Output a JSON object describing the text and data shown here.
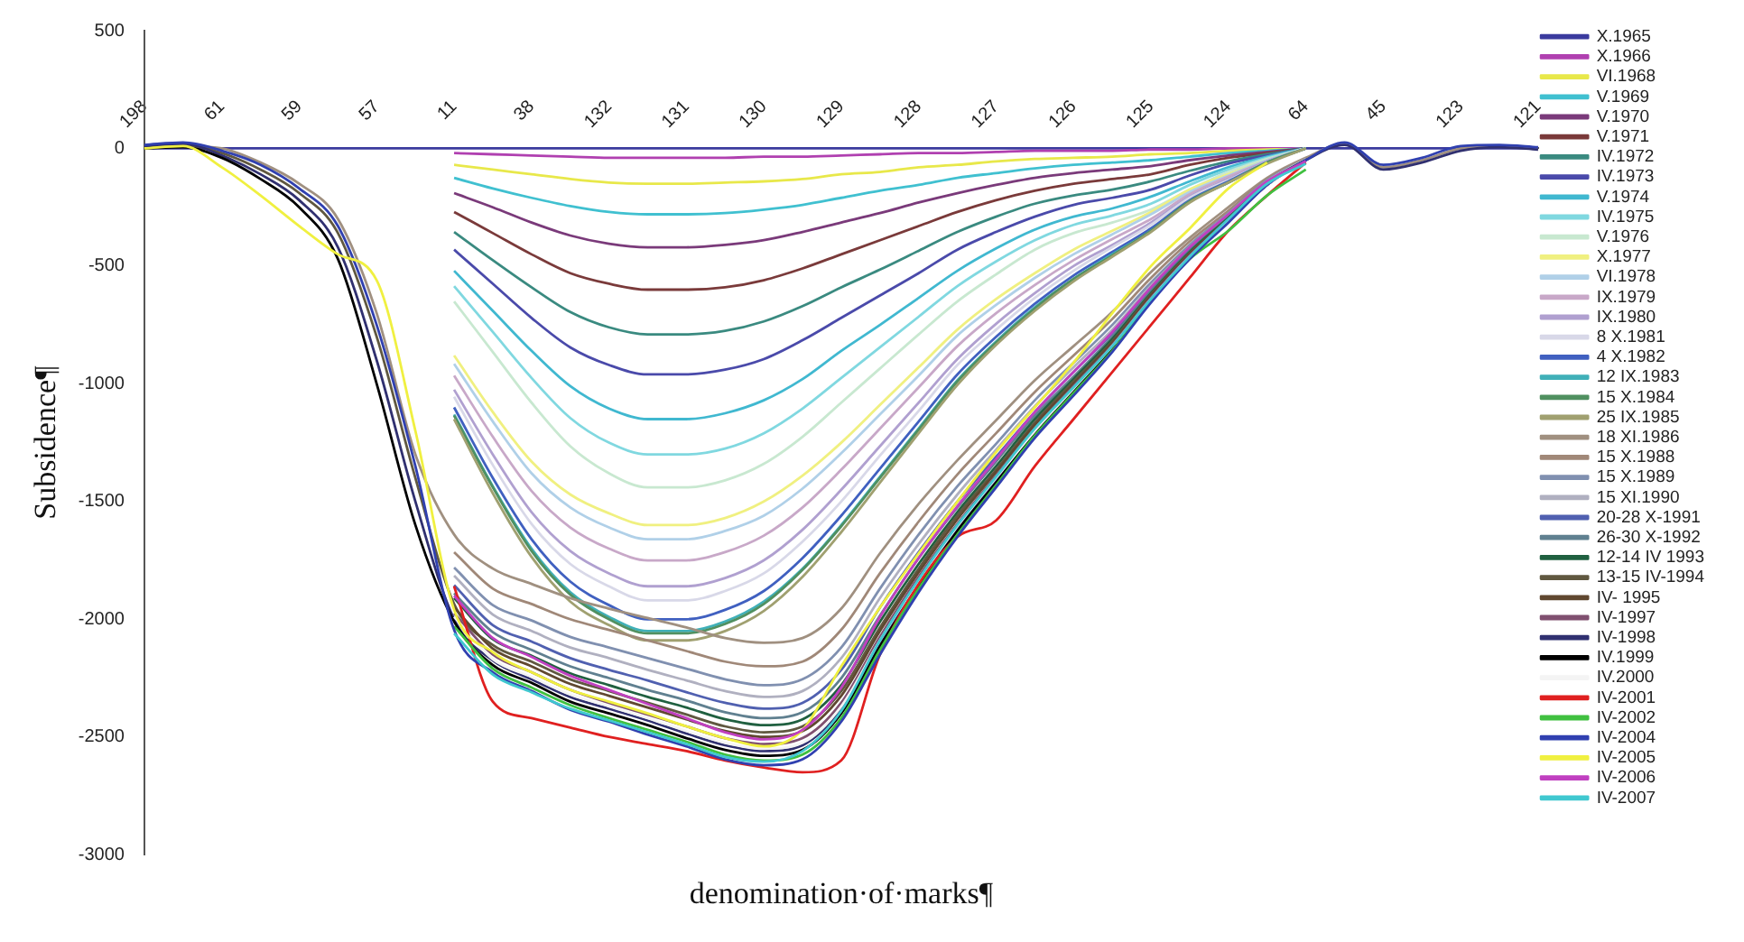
{
  "chart_data": {
    "type": "line",
    "xlabel": "denomination·of·marks¶",
    "ylabel": "Subsidence¶",
    "categories": [
      "198",
      null,
      "61",
      null,
      "59",
      null,
      "57",
      null,
      "11",
      null,
      "38",
      null,
      "132",
      null,
      "131",
      null,
      "130",
      null,
      "129",
      null,
      "128",
      null,
      "127",
      null,
      "126",
      null,
      "125",
      null,
      "124",
      null,
      "64",
      null,
      "45",
      null,
      "123",
      null,
      "121"
    ],
    "ylim": [
      -3000,
      500
    ],
    "yticks": [
      -3000,
      -2500,
      -2000,
      -1500,
      -1000,
      -500,
      0,
      500
    ],
    "grid": false,
    "legend": "right",
    "marker": "none",
    "line_style": "solid",
    "series": [
      {
        "name": "X.1965",
        "color": "#3b3b9e",
        "values": [
          0,
          0,
          0,
          0,
          0,
          0,
          0,
          0,
          0,
          0,
          0,
          0,
          0,
          0,
          0,
          0,
          0,
          0,
          0,
          0,
          0,
          0,
          0,
          0,
          0,
          0,
          0,
          0,
          0,
          0,
          0,
          0,
          0,
          0,
          0,
          0,
          0
        ]
      },
      {
        "name": "X.1966",
        "color": "#b040b0",
        "values": [
          null,
          null,
          null,
          null,
          null,
          null,
          null,
          null,
          -20,
          -25,
          -30,
          -35,
          -40,
          -40,
          -40,
          -40,
          -35,
          -35,
          -30,
          -25,
          -20,
          -20,
          -15,
          -10,
          -10,
          -10,
          -5,
          -5,
          0,
          0,
          0,
          null,
          null,
          null,
          null,
          null,
          null
        ]
      },
      {
        "name": "VI.1968",
        "color": "#e8e84a",
        "values": [
          null,
          null,
          null,
          null,
          null,
          null,
          null,
          null,
          -70,
          -90,
          -110,
          -130,
          -145,
          -150,
          -150,
          -145,
          -140,
          -130,
          -110,
          -100,
          -80,
          -70,
          -55,
          -45,
          -40,
          -35,
          -25,
          -20,
          -10,
          -5,
          0,
          null,
          null,
          null,
          null,
          null,
          null
        ]
      },
      {
        "name": "V.1969",
        "color": "#40c0d0",
        "values": [
          null,
          null,
          null,
          null,
          null,
          null,
          null,
          null,
          -125,
          -170,
          -210,
          -245,
          -270,
          -280,
          -280,
          -275,
          -260,
          -240,
          -210,
          -180,
          -155,
          -125,
          -105,
          -85,
          -70,
          -60,
          -50,
          -35,
          -20,
          -10,
          0,
          null,
          null,
          null,
          null,
          null,
          null
        ]
      },
      {
        "name": "V.1970",
        "color": "#7a3a7a",
        "values": [
          null,
          null,
          null,
          null,
          null,
          null,
          null,
          null,
          -190,
          -250,
          -315,
          -370,
          -405,
          -420,
          -420,
          -410,
          -390,
          -355,
          -315,
          -275,
          -230,
          -190,
          -155,
          -125,
          -105,
          -90,
          -75,
          -50,
          -30,
          -15,
          0,
          null,
          null,
          null,
          null,
          null,
          null
        ]
      },
      {
        "name": "V.1971",
        "color": "#7a3a3a",
        "values": [
          null,
          null,
          null,
          null,
          null,
          null,
          null,
          null,
          -270,
          -360,
          -450,
          -530,
          -575,
          -600,
          -600,
          -590,
          -560,
          -510,
          -450,
          -390,
          -330,
          -270,
          -220,
          -180,
          -150,
          -130,
          -110,
          -70,
          -40,
          -20,
          0,
          null,
          null,
          null,
          null,
          null,
          null
        ]
      },
      {
        "name": "IV.1972",
        "color": "#3a8a80",
        "values": [
          null,
          null,
          null,
          null,
          null,
          null,
          null,
          null,
          -355,
          -475,
          -590,
          -695,
          -760,
          -790,
          -790,
          -775,
          -735,
          -670,
          -590,
          -515,
          -435,
          -355,
          -290,
          -235,
          -200,
          -175,
          -140,
          -95,
          -55,
          -25,
          0,
          null,
          null,
          null,
          null,
          null,
          null
        ]
      },
      {
        "name": "IV.1973",
        "color": "#4a4aaa",
        "values": [
          null,
          null,
          null,
          null,
          null,
          null,
          null,
          null,
          -430,
          -575,
          -720,
          -845,
          -920,
          -960,
          -960,
          -940,
          -895,
          -815,
          -720,
          -625,
          -530,
          -430,
          -355,
          -290,
          -240,
          -210,
          -175,
          -115,
          -65,
          -30,
          0,
          null,
          null,
          null,
          null,
          null,
          null
        ]
      },
      {
        "name": "V.1974",
        "color": "#40b8d0",
        "values": [
          null,
          null,
          null,
          null,
          null,
          null,
          null,
          null,
          -520,
          -690,
          -860,
          -1010,
          -1105,
          -1150,
          -1150,
          -1125,
          -1070,
          -980,
          -860,
          -750,
          -635,
          -520,
          -425,
          -345,
          -290,
          -255,
          -205,
          -140,
          -80,
          -35,
          0,
          null,
          null,
          null,
          null,
          null,
          null
        ]
      },
      {
        "name": "IV.1975",
        "color": "#80d8e0",
        "values": [
          null,
          null,
          null,
          null,
          null,
          null,
          null,
          null,
          -585,
          -780,
          -975,
          -1145,
          -1250,
          -1300,
          -1300,
          -1275,
          -1210,
          -1105,
          -975,
          -845,
          -715,
          -585,
          -480,
          -390,
          -325,
          -285,
          -235,
          -155,
          -90,
          -40,
          0,
          null,
          null,
          null,
          null,
          null,
          null
        ]
      },
      {
        "name": "V.1976",
        "color": "#c8e8d0",
        "values": [
          null,
          null,
          null,
          null,
          null,
          null,
          null,
          null,
          -650,
          -865,
          -1080,
          -1265,
          -1380,
          -1440,
          -1440,
          -1410,
          -1340,
          -1225,
          -1080,
          -935,
          -790,
          -650,
          -535,
          -430,
          -360,
          -315,
          -260,
          -175,
          -100,
          -45,
          0,
          null,
          null,
          null,
          null,
          null,
          null
        ]
      },
      {
        "name": "X.1977",
        "color": "#f0f080",
        "values": [
          null,
          null,
          null,
          null,
          null,
          null,
          null,
          null,
          -880,
          -1120,
          -1330,
          -1470,
          -1550,
          -1600,
          -1600,
          -1570,
          -1500,
          -1390,
          -1250,
          -1090,
          -930,
          -770,
          -640,
          -530,
          -430,
          -350,
          -270,
          -175,
          -110,
          -50,
          0,
          null,
          null,
          null,
          null,
          null,
          null
        ]
      },
      {
        "name": "VI.1978",
        "color": "#b0d0e8",
        "values": [
          null,
          null,
          null,
          null,
          null,
          null,
          null,
          null,
          -915,
          -1160,
          -1380,
          -1525,
          -1610,
          -1660,
          -1660,
          -1625,
          -1560,
          -1445,
          -1295,
          -1130,
          -965,
          -795,
          -665,
          -550,
          -450,
          -365,
          -280,
          -185,
          -115,
          -50,
          0,
          null,
          null,
          null,
          null,
          null,
          null
        ]
      },
      {
        "name": "IX.1979",
        "color": "#c8a8c8",
        "values": [
          null,
          null,
          null,
          null,
          null,
          null,
          null,
          null,
          -965,
          -1225,
          -1455,
          -1610,
          -1700,
          -1750,
          -1750,
          -1715,
          -1645,
          -1525,
          -1365,
          -1190,
          -1015,
          -840,
          -700,
          -580,
          -475,
          -385,
          -300,
          -195,
          -120,
          -55,
          0,
          null,
          null,
          null,
          null,
          null,
          null
        ]
      },
      {
        "name": "IX.1980",
        "color": "#b0a0d0",
        "values": [
          null,
          null,
          null,
          null,
          null,
          null,
          null,
          null,
          -1025,
          -1300,
          -1545,
          -1710,
          -1805,
          -1860,
          -1860,
          -1825,
          -1750,
          -1620,
          -1450,
          -1265,
          -1080,
          -895,
          -745,
          -615,
          -500,
          -410,
          -315,
          -205,
          -130,
          -55,
          0,
          null,
          null,
          null,
          null,
          null,
          null
        ]
      },
      {
        "name": "8 X.1981",
        "color": "#d8d8e8",
        "values": [
          null,
          null,
          null,
          null,
          null,
          null,
          null,
          null,
          -1055,
          -1345,
          -1595,
          -1765,
          -1860,
          -1920,
          -1920,
          -1880,
          -1805,
          -1670,
          -1500,
          -1305,
          -1115,
          -920,
          -770,
          -635,
          -520,
          -420,
          -325,
          -210,
          -135,
          -60,
          0,
          null,
          null,
          null,
          null,
          null,
          null
        ]
      },
      {
        "name": "4 X.1982",
        "color": "#4060c0",
        "values": [
          null,
          null,
          null,
          null,
          null,
          null,
          null,
          null,
          -1100,
          -1400,
          -1660,
          -1840,
          -1940,
          -2000,
          -2000,
          -1960,
          -1880,
          -1740,
          -1560,
          -1360,
          -1160,
          -960,
          -800,
          -660,
          -540,
          -440,
          -340,
          -220,
          -140,
          -60,
          0,
          null,
          null,
          null,
          null,
          null,
          null
        ]
      },
      {
        "name": "12 IX.1983",
        "color": "#40b0b8",
        "values": [
          null,
          null,
          null,
          null,
          null,
          null,
          null,
          null,
          -1130,
          -1435,
          -1700,
          -1885,
          -1990,
          -2050,
          -2050,
          -2010,
          -1925,
          -1785,
          -1600,
          -1395,
          -1190,
          -985,
          -820,
          -675,
          -555,
          -450,
          -350,
          -225,
          -145,
          -60,
          0,
          null,
          null,
          null,
          null,
          null,
          null
        ]
      },
      {
        "name": "15 X.1984",
        "color": "#509060",
        "values": [
          null,
          null,
          null,
          null,
          null,
          null,
          null,
          null,
          -1135,
          -1440,
          -1710,
          -1895,
          -2000,
          -2060,
          -2060,
          -2020,
          -1935,
          -1790,
          -1605,
          -1400,
          -1195,
          -990,
          -825,
          -680,
          -555,
          -455,
          -350,
          -225,
          -145,
          -60,
          0,
          null,
          null,
          null,
          null,
          null,
          null
        ]
      },
      {
        "name": "25 IX.1985",
        "color": "#a0a070",
        "values": [
          null,
          null,
          null,
          null,
          null,
          null,
          null,
          null,
          -1150,
          -1465,
          -1735,
          -1925,
          -2025,
          -2090,
          -2090,
          -2050,
          -1965,
          -1820,
          -1630,
          -1420,
          -1210,
          -1005,
          -835,
          -690,
          -565,
          -460,
          -355,
          -230,
          -145,
          -65,
          0,
          null,
          null,
          null,
          null,
          null,
          null
        ]
      },
      {
        "name": "18 XI.1986",
        "color": "#a09080",
        "values": [
          0,
          10,
          0,
          -60,
          -150,
          -300,
          -700,
          -1300,
          -1640,
          -1785,
          -1850,
          -1910,
          -1955,
          -1995,
          -2035,
          -2080,
          -2100,
          -2080,
          -1955,
          -1720,
          -1510,
          -1325,
          -1155,
          -985,
          -840,
          -695,
          -525,
          -380,
          -250,
          -125,
          -40,
          20,
          -80,
          -50,
          0,
          10,
          0
        ]
      },
      {
        "name": "15 X.1988",
        "color": "#a08878",
        "values": [
          null,
          null,
          null,
          null,
          null,
          null,
          null,
          null,
          -1715,
          -1870,
          -1935,
          -2000,
          -2045,
          -2090,
          -2135,
          -2180,
          -2200,
          -2180,
          -2045,
          -1805,
          -1585,
          -1385,
          -1210,
          -1035,
          -880,
          -725,
          -550,
          -395,
          -265,
          -130,
          -45,
          null,
          null,
          null,
          null,
          null,
          null
        ]
      },
      {
        "name": "15 X.1989",
        "color": "#8090b0",
        "values": [
          null,
          null,
          null,
          null,
          null,
          null,
          null,
          null,
          -1780,
          -1940,
          -2005,
          -2075,
          -2120,
          -2165,
          -2210,
          -2255,
          -2280,
          -2255,
          -2120,
          -1870,
          -1640,
          -1435,
          -1255,
          -1070,
          -910,
          -750,
          -570,
          -410,
          -275,
          -135,
          -45,
          null,
          null,
          null,
          null,
          null,
          null
        ]
      },
      {
        "name": "15 XI.1990",
        "color": "#b0b0c0",
        "values": [
          null,
          null,
          null,
          null,
          null,
          null,
          null,
          null,
          -1815,
          -1980,
          -2050,
          -2120,
          -2165,
          -2215,
          -2260,
          -2305,
          -2330,
          -2305,
          -2165,
          -1910,
          -1680,
          -1470,
          -1280,
          -1095,
          -930,
          -770,
          -585,
          -420,
          -280,
          -140,
          -45,
          null,
          null,
          null,
          null,
          null,
          null
        ]
      },
      {
        "name": "20-28 X-1991",
        "color": "#5060b0",
        "values": [
          null,
          null,
          null,
          null,
          null,
          null,
          null,
          null,
          -1855,
          -2025,
          -2095,
          -2165,
          -2215,
          -2260,
          -2310,
          -2355,
          -2380,
          -2355,
          -2215,
          -1950,
          -1715,
          -1500,
          -1310,
          -1120,
          -950,
          -785,
          -595,
          -430,
          -285,
          -145,
          -50,
          null,
          null,
          null,
          null,
          null,
          null
        ]
      },
      {
        "name": "26-30 X-1992",
        "color": "#608090",
        "values": [
          null,
          null,
          null,
          null,
          null,
          null,
          null,
          null,
          -1890,
          -2055,
          -2130,
          -2200,
          -2250,
          -2300,
          -2345,
          -2395,
          -2420,
          -2395,
          -2250,
          -1985,
          -1740,
          -1525,
          -1330,
          -1135,
          -970,
          -800,
          -605,
          -435,
          -290,
          -145,
          -50,
          null,
          null,
          null,
          null,
          null,
          null
        ]
      },
      {
        "name": "12-14 IV 1993",
        "color": "#206040",
        "values": [
          null,
          null,
          null,
          null,
          null,
          null,
          null,
          null,
          -1910,
          -2085,
          -2155,
          -2230,
          -2280,
          -2330,
          -2375,
          -2425,
          -2450,
          -2425,
          -2280,
          -2010,
          -1765,
          -1545,
          -1350,
          -1150,
          -980,
          -810,
          -615,
          -440,
          -295,
          -145,
          -50,
          null,
          null,
          null,
          null,
          null,
          null
        ]
      },
      {
        "name": "13-15 IV-1994",
        "color": "#605840",
        "values": [
          5,
          15,
          -20,
          -90,
          -190,
          -360,
          -800,
          -1400,
          -1935,
          -2110,
          -2180,
          -2255,
          -2305,
          -2355,
          -2405,
          -2455,
          -2480,
          -2455,
          -2305,
          -2035,
          -1785,
          -1560,
          -1365,
          -1165,
          -990,
          -820,
          -620,
          -445,
          -300,
          -150,
          -50,
          null,
          null,
          null,
          null,
          null,
          null
        ]
      },
      {
        "name": "IV- 1995",
        "color": "#604830",
        "values": [
          null,
          null,
          null,
          null,
          null,
          null,
          null,
          null,
          -1950,
          -2125,
          -2200,
          -2275,
          -2325,
          -2375,
          -2425,
          -2475,
          -2500,
          -2475,
          -2325,
          -2050,
          -1800,
          -1575,
          -1375,
          -1175,
          -1000,
          -825,
          -625,
          -450,
          -300,
          -150,
          -50,
          null,
          null,
          null,
          null,
          null,
          null
        ]
      },
      {
        "name": "IV-1997",
        "color": "#805070",
        "values": [
          null,
          null,
          null,
          null,
          null,
          null,
          null,
          null,
          -1975,
          -2150,
          -2225,
          -2300,
          -2355,
          -2405,
          -2455,
          -2505,
          -2530,
          -2505,
          -2355,
          -2075,
          -1820,
          -1595,
          -1390,
          -1190,
          -1010,
          -835,
          -635,
          -455,
          -305,
          -150,
          -50,
          null,
          null,
          null,
          null,
          null,
          null
        ]
      },
      {
        "name": "IV-1998",
        "color": "#303070",
        "values": [
          10,
          20,
          -30,
          -110,
          -220,
          -420,
          -900,
          -1500,
          -2000,
          -2175,
          -2255,
          -2330,
          -2380,
          -2430,
          -2485,
          -2535,
          -2560,
          -2535,
          -2380,
          -2100,
          -1845,
          -1615,
          -1410,
          -1205,
          -1025,
          -845,
          -640,
          -460,
          -305,
          -155,
          -50,
          15,
          -90,
          -60,
          -10,
          5,
          -5
        ]
      },
      {
        "name": "IV.1999",
        "color": "#000000",
        "values": [
          0,
          5,
          -40,
          -130,
          -250,
          -470,
          -1000,
          -1600,
          -2010,
          -2195,
          -2270,
          -2350,
          -2400,
          -2450,
          -2505,
          -2555,
          -2580,
          -2555,
          -2400,
          -2115,
          -1860,
          -1625,
          -1420,
          -1215,
          -1030,
          -850,
          -645,
          -465,
          -310,
          -155,
          -50,
          null,
          null,
          null,
          null,
          null,
          null
        ]
      },
      {
        "name": "IV.2000",
        "color": "#f4f4f4",
        "values": [
          null,
          null,
          null,
          null,
          null,
          null,
          null,
          null,
          -1990,
          -2170,
          -2245,
          -2320,
          -2370,
          -2420,
          -2475,
          -2525,
          -2550,
          -2525,
          -2370,
          -2090,
          -1835,
          -1605,
          -1400,
          -1200,
          -1020,
          -840,
          -640,
          -460,
          -305,
          -155,
          -50,
          null,
          null,
          null,
          null,
          null,
          null
        ]
      },
      {
        "name": "IV-2001",
        "color": "#e02020",
        "values": [
          null,
          null,
          null,
          null,
          null,
          null,
          null,
          null,
          -1860,
          -2350,
          -2420,
          -2460,
          -2500,
          -2530,
          -2560,
          -2600,
          -2630,
          -2650,
          -2600,
          -2150,
          -1850,
          -1650,
          -1580,
          -1350,
          -1150,
          -950,
          -750,
          -550,
          -350,
          -200,
          -60,
          null,
          null,
          null,
          null,
          null,
          null
        ]
      },
      {
        "name": "IV-2002",
        "color": "#40c040",
        "values": [
          null,
          null,
          null,
          null,
          null,
          null,
          null,
          null,
          -2030,
          -2210,
          -2290,
          -2365,
          -2420,
          -2470,
          -2520,
          -2575,
          -2600,
          -2575,
          -2420,
          -2130,
          -1870,
          -1640,
          -1430,
          -1220,
          -1040,
          -860,
          -650,
          -470,
          -350,
          -200,
          -90,
          null,
          null,
          null,
          null,
          null,
          null
        ]
      },
      {
        "name": "IV-2004",
        "color": "#3040b0",
        "values": [
          15,
          25,
          -10,
          -70,
          -170,
          -330,
          -750,
          -1350,
          -2045,
          -2225,
          -2305,
          -2385,
          -2435,
          -2490,
          -2540,
          -2595,
          -2620,
          -2595,
          -2435,
          -2150,
          -1885,
          -1650,
          -1440,
          -1230,
          -1050,
          -865,
          -655,
          -470,
          -315,
          -155,
          -50,
          25,
          -70,
          -40,
          10,
          15,
          5
        ]
      },
      {
        "name": "IV-2005",
        "color": "#f0f040",
        "values": [
          0,
          10,
          -80,
          -200,
          -330,
          -450,
          -560,
          -1200,
          -1960,
          -2140,
          -2225,
          -2300,
          -2350,
          -2400,
          -2455,
          -2505,
          -2540,
          -2470,
          -2200,
          -1950,
          -1720,
          -1500,
          -1290,
          -1100,
          -910,
          -700,
          -500,
          -340,
          -170,
          -60,
          null,
          null,
          null,
          null,
          null,
          null,
          null
        ]
      },
      {
        "name": "IV-2006",
        "color": "#c040c0",
        "values": [
          null,
          null,
          null,
          null,
          null,
          null,
          null,
          null,
          -1900,
          -2080,
          -2160,
          -2240,
          -2300,
          -2360,
          -2420,
          -2480,
          -2510,
          -2470,
          -2290,
          -1990,
          -1740,
          -1520,
          -1320,
          -1120,
          -950,
          -780,
          -590,
          -420,
          -280,
          -140,
          -55,
          null,
          null,
          null,
          null,
          null,
          null
        ]
      },
      {
        "name": "IV-2007",
        "color": "#40c8d0",
        "values": [
          null,
          null,
          null,
          null,
          null,
          null,
          null,
          null,
          -2060,
          -2235,
          -2310,
          -2380,
          -2430,
          -2480,
          -2530,
          -2585,
          -2605,
          -2560,
          -2390,
          -2090,
          -1830,
          -1600,
          -1395,
          -1190,
          -1015,
          -840,
          -640,
          -460,
          -300,
          -150,
          -65,
          null,
          null,
          null,
          null,
          null,
          null
        ]
      }
    ]
  }
}
